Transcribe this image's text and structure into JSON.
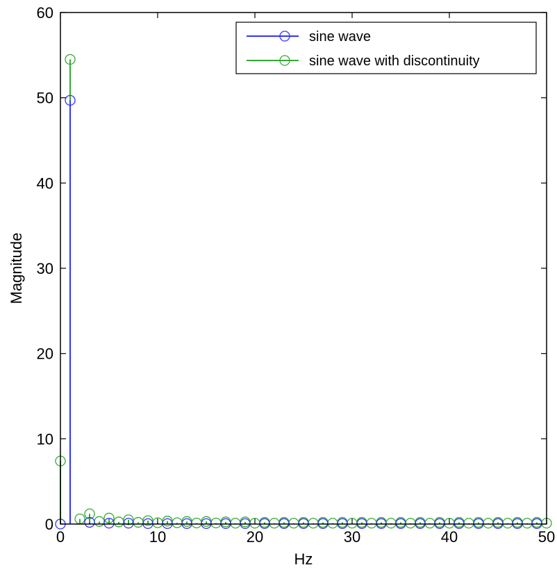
{
  "chart_data": {
    "type": "stem",
    "xlabel": "Hz",
    "ylabel": "Magnitude",
    "xlim": [
      0,
      50
    ],
    "ylim": [
      0,
      60
    ],
    "xticks": [
      0,
      10,
      20,
      30,
      40,
      50
    ],
    "yticks": [
      0,
      10,
      20,
      30,
      40,
      50,
      60
    ],
    "grid": false,
    "legend_placement": "top-right",
    "series": [
      {
        "name": "sine wave",
        "color": "#3333ff",
        "x": [
          0,
          1,
          3,
          5,
          7,
          9,
          11,
          13,
          15,
          17,
          19,
          21,
          23,
          25,
          27,
          29,
          31,
          33,
          35,
          37,
          39,
          41,
          43,
          45,
          47,
          49
        ],
        "y": [
          0,
          49.7,
          0.2,
          0.1,
          0.1,
          0.05,
          0.05,
          0.05,
          0.05,
          0.05,
          0.05,
          0.05,
          0.05,
          0.05,
          0.05,
          0.05,
          0.05,
          0.05,
          0.05,
          0.05,
          0.05,
          0.05,
          0.05,
          0.05,
          0.05,
          0.05
        ]
      },
      {
        "name": "sine wave with discontinuity",
        "color": "#33aa33",
        "x": [
          0,
          1,
          2,
          3,
          4,
          5,
          6,
          7,
          8,
          9,
          10,
          11,
          12,
          13,
          14,
          15,
          16,
          17,
          18,
          19,
          20,
          21,
          22,
          23,
          24,
          25,
          26,
          27,
          28,
          29,
          30,
          31,
          32,
          33,
          34,
          35,
          36,
          37,
          38,
          39,
          40,
          41,
          42,
          43,
          44,
          45,
          46,
          47,
          48,
          49,
          50
        ],
        "y": [
          7.4,
          54.5,
          0.6,
          1.2,
          0.3,
          0.7,
          0.25,
          0.5,
          0.2,
          0.4,
          0.15,
          0.35,
          0.15,
          0.3,
          0.12,
          0.3,
          0.12,
          0.25,
          0.1,
          0.25,
          0.1,
          0.2,
          0.1,
          0.2,
          0.1,
          0.2,
          0.1,
          0.2,
          0.1,
          0.2,
          0.1,
          0.2,
          0.1,
          0.2,
          0.1,
          0.2,
          0.1,
          0.2,
          0.1,
          0.2,
          0.1,
          0.2,
          0.1,
          0.2,
          0.1,
          0.2,
          0.1,
          0.2,
          0.1,
          0.2,
          0.1
        ]
      }
    ]
  }
}
